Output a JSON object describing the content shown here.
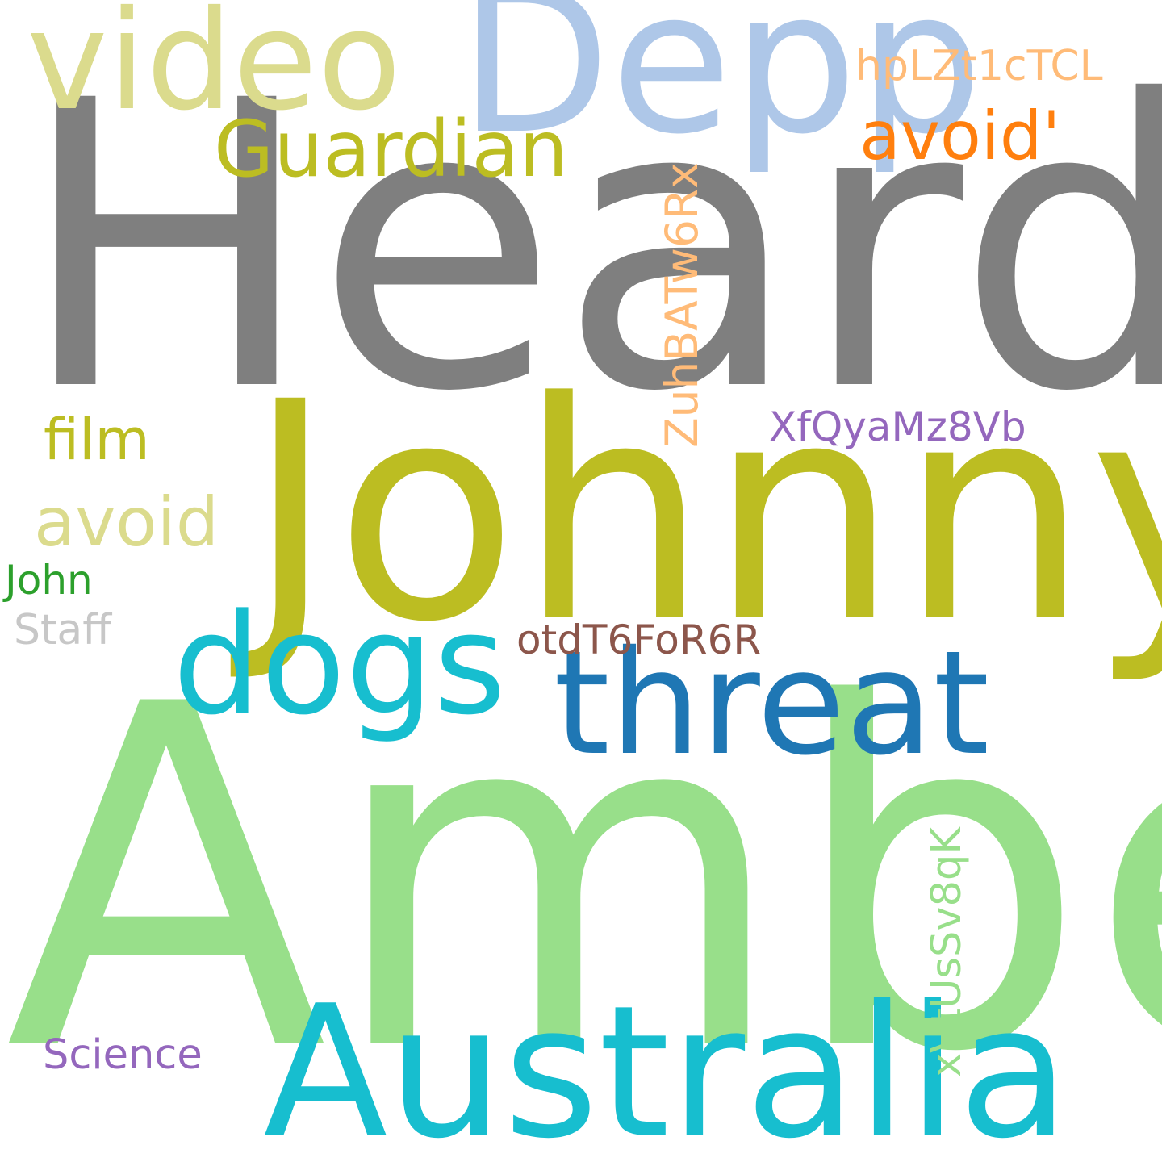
{
  "words": {
    "heard": {
      "text": "Heard",
      "color": "#7f7f7f"
    },
    "amber": {
      "text": "Amber",
      "color": "#98df8a"
    },
    "johnny": {
      "text": "Johnny",
      "color": "#bcbd22"
    },
    "australia": {
      "text": "Australia",
      "color": "#17becf"
    },
    "depp": {
      "text": "Depp",
      "color": "#aec7e8"
    },
    "video": {
      "text": "video",
      "color": "#dbdb8d"
    },
    "threat": {
      "text": "threat",
      "color": "#1f77b4"
    },
    "dogs": {
      "text": "dogs",
      "color": "#17becf"
    },
    "guardian": {
      "text": "Guardian",
      "color": "#bcbd22"
    },
    "avoid_quote": {
      "text": "avoid'",
      "color": "#ff7f0e"
    },
    "avoid": {
      "text": "avoid",
      "color": "#dbdb8d"
    },
    "film": {
      "text": "film",
      "color": "#bcbd22"
    },
    "hplzt": {
      "text": "hpLZt1cTCL",
      "color": "#ffbb78"
    },
    "zuhba": {
      "text": "ZuhBATw6Rx",
      "color": "#ffbb78"
    },
    "xfqya": {
      "text": "XfQyaMz8Vb",
      "color": "#9467bd"
    },
    "otdt": {
      "text": "otdT6FoR6R",
      "color": "#8c564b"
    },
    "xvtus": {
      "text": "xVtUsSv8qK",
      "color": "#98df8a"
    },
    "john": {
      "text": "John",
      "color": "#2ca02c"
    },
    "staff": {
      "text": "Staff",
      "color": "#c7c7c7"
    },
    "science": {
      "text": "Science",
      "color": "#9467bd"
    }
  }
}
